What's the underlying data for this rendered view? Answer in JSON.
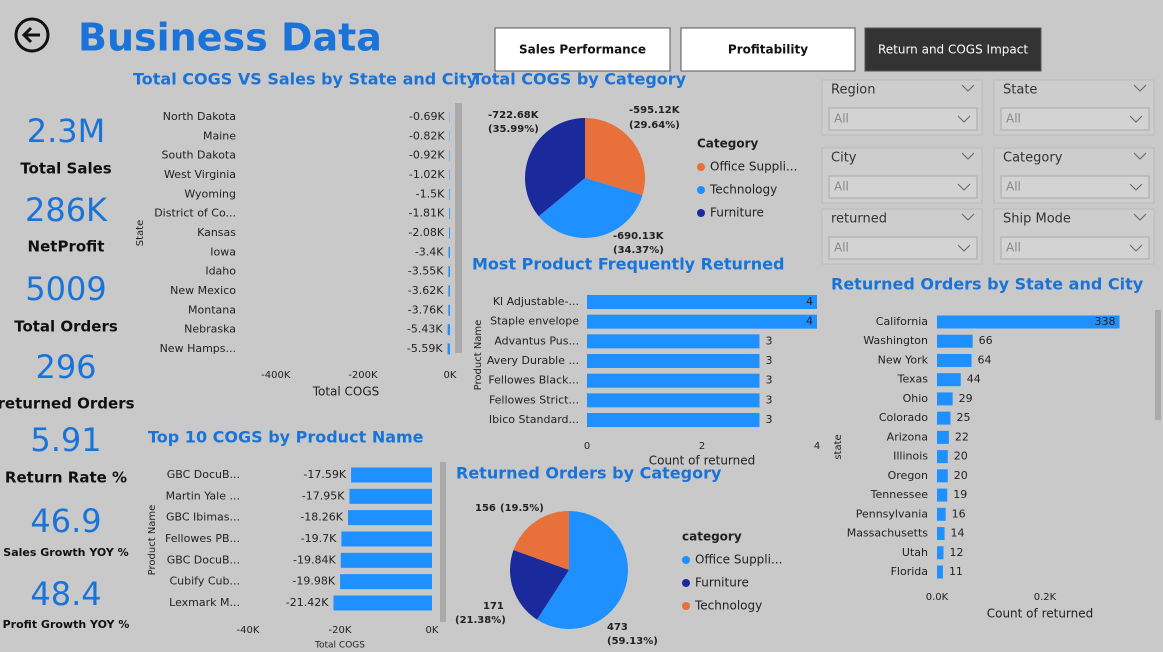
{
  "header": {
    "title": "Business Data"
  },
  "buttons": [
    "Sales Performance",
    "Profitability",
    "Return and COGS Impact"
  ],
  "kpis": [
    {
      "value": "2.3M",
      "label": "Total Sales"
    },
    {
      "value": "286K",
      "label": "NetProfit"
    },
    {
      "value": "5009",
      "label": "Total Orders"
    },
    {
      "value": "296",
      "label": "returned Orders"
    },
    {
      "value": "5.91",
      "label": "Return Rate %"
    },
    {
      "value": "46.9",
      "label": "Sales Growth YOY %"
    },
    {
      "value": "48.4",
      "label": "Profit Growth YOY %"
    }
  ],
  "filters": [
    {
      "label": "Region",
      "value": "All"
    },
    {
      "label": "State",
      "value": "All"
    },
    {
      "label": "City",
      "value": "All"
    },
    {
      "label": "Category",
      "value": "All"
    },
    {
      "label": "returned",
      "value": "All"
    },
    {
      "label": "Ship Mode",
      "value": "All"
    }
  ],
  "chart_data": [
    {
      "type": "hbar",
      "title": "Total COGS VS Sales by State and City",
      "x_label": "Total COGS",
      "y_label": "State",
      "categories": [
        "North Dakota",
        "Maine",
        "South Dakota",
        "West Virginia",
        "Wyoming",
        "District of Co...",
        "Kansas",
        "Iowa",
        "Idaho",
        "New Mexico",
        "Montana",
        "Nebraska",
        "New Hamps..."
      ],
      "values": [
        -690,
        -820,
        -920,
        -1020,
        -1500,
        -1810,
        -2080,
        -3400,
        -3550,
        -3620,
        -3760,
        -5430,
        -5590
      ],
      "value_labels": [
        "-0.69K",
        "-0.82K",
        "-0.92K",
        "-1.02K",
        "-1.5K",
        "-1.81K",
        "-2.08K",
        "-3.4K",
        "-3.55K",
        "-3.62K",
        "-3.76K",
        "-5.43K",
        "-5.59K"
      ],
      "color": "#1e90ff",
      "xlim": [
        -450000,
        0
      ],
      "xticks": [
        {
          "value": -400000,
          "label": "-400K"
        },
        {
          "value": -200000,
          "label": "-200K"
        },
        {
          "value": 0,
          "label": "0K"
        }
      ]
    },
    {
      "type": "pie",
      "title": "Total COGS by Category",
      "legend_title": "Category",
      "categories": [
        "Office Suppli...",
        "Technology",
        "Furniture"
      ],
      "colors": [
        "#e8703a",
        "#1e90ff",
        "#1a2a9c"
      ],
      "values": [
        -595120,
        -690130,
        -722680
      ],
      "value_labels": [
        "-595.12K",
        "-690.13K",
        "-722.68K"
      ],
      "percent_labels": [
        "(29.64%)",
        "(34.37%)",
        "(35.99%)"
      ]
    },
    {
      "type": "hbar",
      "title": "Most Product Frequently Returned",
      "x_label": "Count of returned",
      "y_label": "Product Name",
      "categories": [
        "Kl Adjustable-...",
        "Staple envelope",
        "Advantus Pus...",
        "Avery Durable ...",
        "Fellowes Black...",
        "Fellowes Strict...",
        "Ibico Standard..."
      ],
      "values": [
        4,
        4,
        3,
        3,
        3,
        3,
        3
      ],
      "color": "#1e90ff",
      "xlim": [
        0,
        4
      ],
      "xticks": [
        0,
        2,
        4
      ]
    },
    {
      "type": "pie",
      "title": "Returned Orders by Category",
      "legend_title": "category",
      "categories": [
        "Office Suppli...",
        "Furniture",
        "Technology"
      ],
      "colors": [
        "#1e90ff",
        "#1a2a9c",
        "#e8703a"
      ],
      "values": [
        473,
        171,
        156
      ],
      "value_labels": [
        "473",
        "171",
        "156"
      ],
      "percent_labels": [
        "(59.13%)",
        "(21.38%)",
        "(19.5%)"
      ]
    },
    {
      "type": "hbar",
      "title": "Returned Orders by State and City",
      "x_label": "Count of returned",
      "y_label": "state",
      "categories": [
        "California",
        "Washington",
        "New York",
        "Texas",
        "Ohio",
        "Colorado",
        "Arizona",
        "Illinois",
        "Oregon",
        "Tennessee",
        "Pennsylvania",
        "Massachusetts",
        "Utah",
        "Florida"
      ],
      "values": [
        338,
        66,
        64,
        44,
        29,
        25,
        22,
        20,
        20,
        19,
        16,
        14,
        12,
        11
      ],
      "color": "#1e90ff",
      "xlim": [
        0,
        350
      ],
      "xticks": [
        {
          "value": 0,
          "label": "0.0K"
        },
        {
          "value": 200,
          "label": "0.2K"
        }
      ]
    },
    {
      "type": "hbar",
      "title": "Top 10 COGS by Product Name",
      "x_label": "Total COGS",
      "y_label": "Product Name",
      "categories": [
        "GBC DocuB...",
        "Martin Yale ...",
        "GBC Ibimas...",
        "Fellowes PB...",
        "GBC DocuB...",
        "Cubify Cub...",
        "Lexmark M..."
      ],
      "values": [
        -17590,
        -17950,
        -18260,
        -19700,
        -19840,
        -19980,
        -21420
      ],
      "value_labels": [
        "-17.59K",
        "-17.95K",
        "-18.26K",
        "-19.7K",
        "-19.84K",
        "-19.98K",
        "-21.42K"
      ],
      "color": "#1e90ff",
      "xlim": [
        -42000,
        0
      ],
      "xticks": [
        {
          "value": -40000,
          "label": "-40K"
        },
        {
          "value": -20000,
          "label": "-20K"
        },
        {
          "value": 0,
          "label": "0K"
        }
      ]
    }
  ]
}
